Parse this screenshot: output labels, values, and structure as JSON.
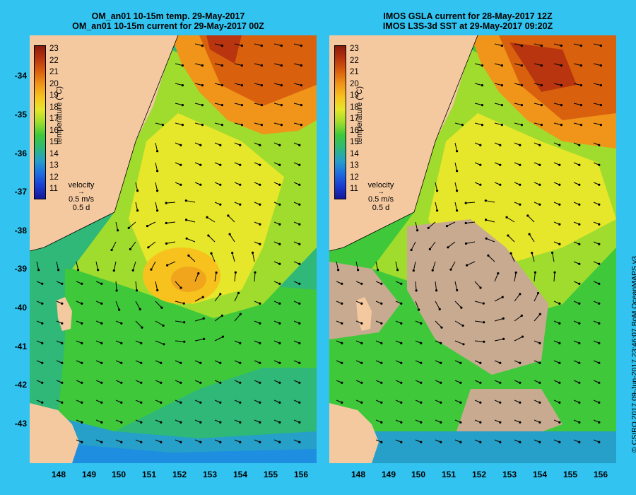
{
  "left_panel": {
    "title_line1": "OM_an01 10-15m temp. 29-May-2017",
    "title_line2": "OM_an01 10-15m current for 29-May-2017 00Z"
  },
  "right_panel": {
    "title_line1": "IMOS GSLA current for 28-May-2017 12Z",
    "title_line2": "IMOS L3S-3d SST at 29-May-2017 09:20Z"
  },
  "colorbar": {
    "title": "temperature (°C)",
    "ticks": [
      "23",
      "22",
      "21",
      "20",
      "19",
      "18",
      "17",
      "16",
      "15",
      "14",
      "13",
      "12",
      "11"
    ],
    "colors": [
      "#8b1a0a",
      "#b8350f",
      "#d9610e",
      "#f0951a",
      "#f7c21e",
      "#e6e62a",
      "#9fdc2e",
      "#3fc83a",
      "#2fb878",
      "#26a0c8",
      "#1e6ee0",
      "#1a3cd0",
      "#141896"
    ]
  },
  "velocity_key": {
    "label": "velocity",
    "speed": "0.5 m/s",
    "time": "0.5 d"
  },
  "axes": {
    "lat_ticks": [
      "-34",
      "-35",
      "-36",
      "-37",
      "-38",
      "-39",
      "-40",
      "-41",
      "-42",
      "-43"
    ],
    "lon_ticks": [
      "148",
      "149",
      "150",
      "151",
      "152",
      "153",
      "154",
      "155",
      "156"
    ]
  },
  "credit": "© CSIRO 2017   09-Jun-2017 23:46:07 BoM OceanMAPS v3",
  "colors": {
    "background": "#33c3f0",
    "land": "#f5c9a0",
    "missing_data": "#c8aa90"
  }
}
